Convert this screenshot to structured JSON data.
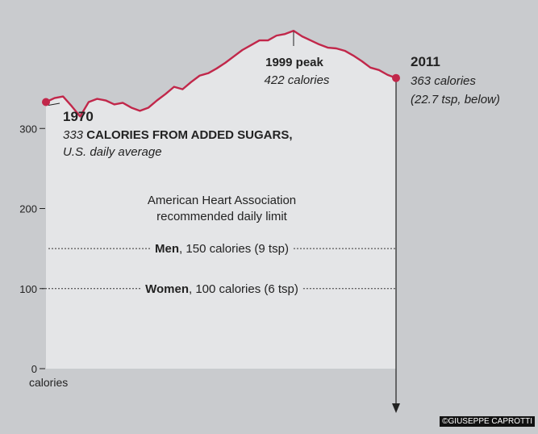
{
  "chart_data": {
    "type": "area",
    "title": "Calories from added sugars, U.S. daily average",
    "ylabel": "calories",
    "ylim": [
      0,
      450
    ],
    "yticks": [
      0,
      100,
      200,
      300
    ],
    "x": [
      1970,
      1971,
      1972,
      1973,
      1974,
      1975,
      1976,
      1977,
      1978,
      1979,
      1980,
      1981,
      1982,
      1983,
      1984,
      1985,
      1986,
      1987,
      1988,
      1989,
      1990,
      1991,
      1992,
      1993,
      1994,
      1995,
      1996,
      1997,
      1998,
      1999,
      2000,
      2001,
      2002,
      2003,
      2004,
      2005,
      2006,
      2007,
      2008,
      2009,
      2010,
      2011
    ],
    "values": [
      333,
      338,
      340,
      328,
      315,
      333,
      337,
      335,
      330,
      332,
      326,
      322,
      326,
      335,
      343,
      352,
      349,
      358,
      366,
      369,
      375,
      382,
      390,
      398,
      404,
      410,
      410,
      416,
      418,
      422,
      415,
      410,
      405,
      401,
      400,
      397,
      391,
      384,
      376,
      373,
      367,
      363
    ],
    "annotations": {
      "start": {
        "year": "1970",
        "desc_value": "333",
        "desc_label": "CALORIES FROM ADDED SUGARS,",
        "desc_sub": "U.S. daily average"
      },
      "peak": {
        "title": "1999 peak",
        "desc": "422 calories"
      },
      "end": {
        "year": "2011",
        "desc1": "363 calories",
        "desc2": "(22.7 tsp, below)"
      }
    },
    "reference_title": [
      "American Heart Association",
      "recommended daily limit"
    ],
    "reference_lines": [
      {
        "value": 150,
        "label_bold": "Men",
        "label_rest": ", 150 calories (9 tsp)"
      },
      {
        "value": 100,
        "label_bold": "Women",
        "label_rest": ", 100 calories (6 tsp)"
      }
    ],
    "colors": {
      "line": "#c1274a",
      "area": "#e4e5e7",
      "background": "#c9cbce",
      "text": "#222222"
    }
  },
  "credit": "©GIUSEPPE CAPROTTI"
}
